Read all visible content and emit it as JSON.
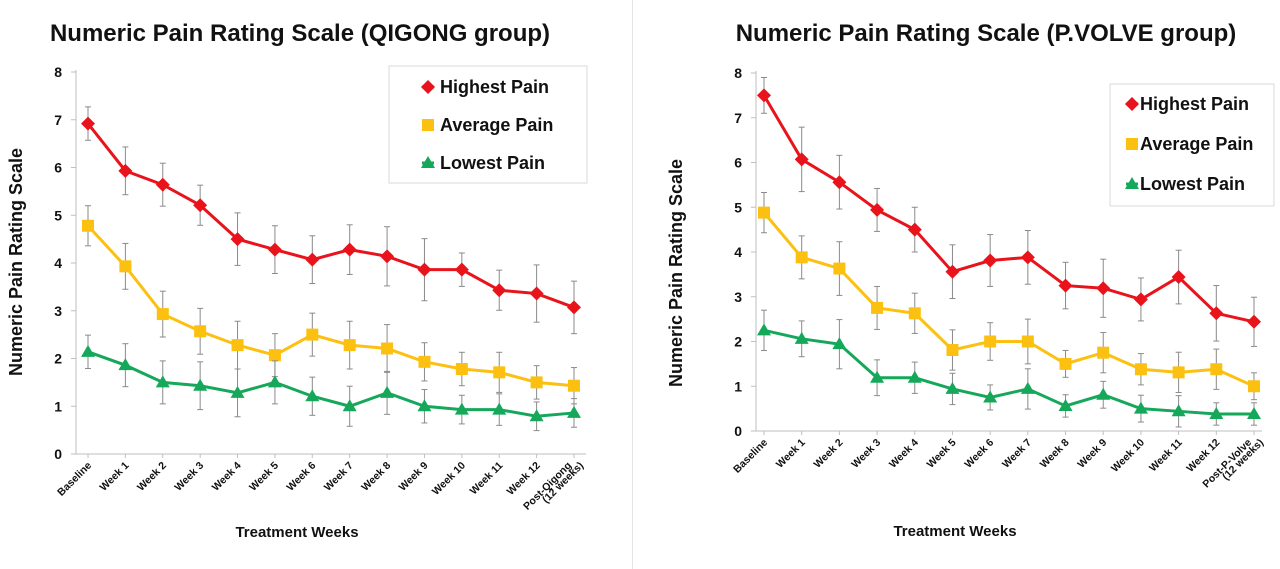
{
  "chart_data": [
    {
      "type": "line",
      "title": "Numeric Pain Rating Scale (QIGONG group)",
      "xlabel": "Treatment Weeks",
      "ylabel": "Numeric Pain  Rating Scale",
      "ylim": [
        0,
        8
      ],
      "yticks": [
        0,
        1,
        2,
        3,
        4,
        5,
        6,
        7,
        8
      ],
      "grid": false,
      "legend_position": "top-right",
      "categories": [
        "Baseline",
        "Week 1",
        "Week 2",
        "Week 3",
        "Week 4",
        "Week 5",
        "Week 6",
        "Week 7",
        "Week 8",
        "Week 9",
        "Week 10",
        "Week 11",
        "Week 12",
        "Post-Qigong\n(12 weeks)"
      ],
      "series": [
        {
          "name": "Highest Pain",
          "color": "#e8131b",
          "marker": "diamond",
          "values": [
            6.92,
            5.93,
            5.64,
            5.21,
            4.5,
            4.28,
            4.07,
            4.28,
            4.14,
            3.86,
            3.86,
            3.43,
            3.36,
            3.07
          ],
          "error": [
            0.35,
            0.5,
            0.45,
            0.42,
            0.55,
            0.5,
            0.5,
            0.52,
            0.62,
            0.65,
            0.35,
            0.42,
            0.6,
            0.55
          ]
        },
        {
          "name": "Average Pain",
          "color": "#fcc010",
          "marker": "square",
          "values": [
            4.78,
            3.93,
            2.93,
            2.57,
            2.28,
            2.07,
            2.5,
            2.28,
            2.21,
            1.93,
            1.78,
            1.71,
            1.5,
            1.43
          ],
          "error": [
            0.42,
            0.48,
            0.48,
            0.48,
            0.5,
            0.45,
            0.45,
            0.5,
            0.5,
            0.4,
            0.35,
            0.42,
            0.35,
            0.38
          ]
        },
        {
          "name": "Lowest Pain",
          "color": "#16a85a",
          "marker": "triangle",
          "values": [
            2.14,
            1.86,
            1.5,
            1.43,
            1.28,
            1.5,
            1.21,
            1.0,
            1.28,
            1.0,
            0.93,
            0.93,
            0.79,
            0.86
          ],
          "error": [
            0.35,
            0.45,
            0.45,
            0.5,
            0.5,
            0.45,
            0.4,
            0.42,
            0.45,
            0.35,
            0.3,
            0.33,
            0.3,
            0.3
          ]
        }
      ]
    },
    {
      "type": "line",
      "title": "Numeric Pain Rating Scale (P.VOLVE group)",
      "xlabel": "Treatment Weeks",
      "ylabel": "Numeric Pain  Rating Scale",
      "ylim": [
        0,
        8
      ],
      "yticks": [
        0,
        1,
        2,
        3,
        4,
        5,
        6,
        7,
        8
      ],
      "grid": false,
      "legend_position": "top-right",
      "categories": [
        "Baseline",
        "Week 1",
        "Week 2",
        "Week 3",
        "Week 4",
        "Week 5",
        "Week 6",
        "Week 7",
        "Week 8",
        "Week 9",
        "Week 10",
        "Week 11",
        "Week 12",
        "Post-P-Volve\n(12 weeks)"
      ],
      "series": [
        {
          "name": "Highest Pain",
          "color": "#e8131b",
          "marker": "diamond",
          "values": [
            7.5,
            6.07,
            5.56,
            4.94,
            4.5,
            3.56,
            3.81,
            3.88,
            3.25,
            3.19,
            2.94,
            3.44,
            2.63,
            2.44
          ],
          "error": [
            0.4,
            0.72,
            0.6,
            0.48,
            0.5,
            0.6,
            0.58,
            0.6,
            0.52,
            0.65,
            0.48,
            0.6,
            0.62,
            0.55
          ]
        },
        {
          "name": "Average Pain",
          "color": "#fcc010",
          "marker": "square",
          "values": [
            4.88,
            3.88,
            3.63,
            2.75,
            2.63,
            1.81,
            2.0,
            2.0,
            1.5,
            1.75,
            1.38,
            1.31,
            1.38,
            1.0
          ],
          "error": [
            0.45,
            0.48,
            0.6,
            0.48,
            0.45,
            0.45,
            0.42,
            0.5,
            0.3,
            0.45,
            0.35,
            0.45,
            0.45,
            0.3
          ]
        },
        {
          "name": "Lowest Pain",
          "color": "#16a85a",
          "marker": "triangle",
          "values": [
            2.25,
            2.06,
            1.94,
            1.19,
            1.19,
            0.94,
            0.75,
            0.94,
            0.56,
            0.81,
            0.5,
            0.44,
            0.38,
            0.38
          ],
          "error": [
            0.45,
            0.4,
            0.55,
            0.4,
            0.35,
            0.35,
            0.28,
            0.45,
            0.25,
            0.3,
            0.3,
            0.35,
            0.25,
            0.25
          ]
        }
      ]
    }
  ]
}
